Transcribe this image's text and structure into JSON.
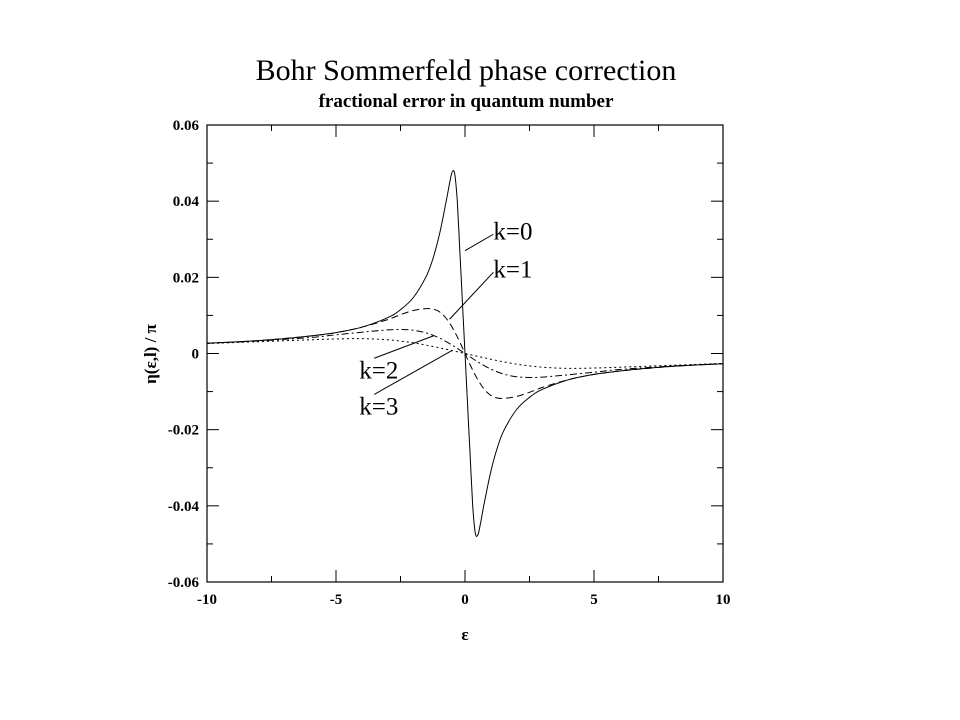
{
  "chart_data": {
    "type": "line",
    "title": "Bohr Sommerfeld phase correction",
    "subtitle": "fractional error in quantum number",
    "xlabel": "ε",
    "ylabel": "η(ε,l) / π",
    "xlim": [
      -10,
      10
    ],
    "ylim": [
      -0.06,
      0.06
    ],
    "x_ticks": [
      "-10",
      "-5",
      "0",
      "5",
      "10"
    ],
    "y_ticks": [
      "-0.06",
      "-0.04",
      "-0.02",
      "0",
      "0.02",
      "0.04",
      "0.06"
    ],
    "grid": false,
    "legend": "none",
    "series": [
      {
        "name": "k=0",
        "x": [
          -10,
          -9,
          -8,
          -7,
          -6,
          -5,
          -4,
          -3,
          -2.5,
          -2,
          -1.5,
          -1.25,
          -1,
          -0.75,
          -0.6,
          -0.5,
          -0.4,
          -0.3,
          -0.2,
          -0.1,
          0,
          0.1,
          0.2,
          0.3,
          0.4,
          0.5,
          0.6,
          0.75,
          1,
          1.25,
          1.5,
          2,
          2.5,
          3,
          4,
          5,
          6,
          7,
          8,
          9,
          10
        ],
        "y": [
          0.0027,
          0.003,
          0.0034,
          0.0039,
          0.0046,
          0.0055,
          0.0069,
          0.0094,
          0.0115,
          0.0147,
          0.0203,
          0.0248,
          0.031,
          0.0392,
          0.0446,
          0.0476,
          0.0472,
          0.04,
          0.027,
          0.0135,
          0,
          -0.0135,
          -0.027,
          -0.04,
          -0.0472,
          -0.0476,
          -0.0446,
          -0.0392,
          -0.031,
          -0.0248,
          -0.0203,
          -0.0147,
          -0.0115,
          -0.0094,
          -0.0069,
          -0.0055,
          -0.0046,
          -0.0039,
          -0.0034,
          -0.003,
          -0.0027
        ]
      },
      {
        "name": "k=1",
        "x": [
          -10,
          -8,
          -6,
          -5,
          -4,
          -3,
          -2.5,
          -2,
          -1.5,
          -1.2,
          -1,
          -0.8,
          -0.6,
          -0.4,
          -0.2,
          0,
          0.2,
          0.4,
          0.6,
          0.8,
          1,
          1.2,
          1.5,
          2,
          2.5,
          3,
          4,
          5,
          6,
          8,
          10
        ],
        "y": [
          0.0027,
          0.0034,
          0.0046,
          0.0055,
          0.0069,
          0.0089,
          0.0102,
          0.0113,
          0.0118,
          0.0116,
          0.011,
          0.0098,
          0.008,
          0.0057,
          0.003,
          0,
          -0.003,
          -0.0057,
          -0.008,
          -0.0098,
          -0.011,
          -0.0116,
          -0.0118,
          -0.0113,
          -0.0102,
          -0.0089,
          -0.0069,
          -0.0055,
          -0.0046,
          -0.0034,
          -0.0027
        ]
      },
      {
        "name": "k=2",
        "x": [
          -10,
          -8,
          -6,
          -5,
          -4,
          -3.5,
          -3,
          -2.5,
          -2,
          -1.5,
          -1,
          -0.5,
          0,
          0.5,
          1,
          1.5,
          2,
          2.5,
          3,
          3.5,
          4,
          5,
          6,
          8,
          10
        ],
        "y": [
          0.0027,
          0.0033,
          0.0042,
          0.0049,
          0.0056,
          0.0059,
          0.0062,
          0.0063,
          0.0061,
          0.0054,
          0.0041,
          0.0022,
          0,
          -0.0022,
          -0.0041,
          -0.0054,
          -0.0061,
          -0.0063,
          -0.0062,
          -0.0059,
          -0.0056,
          -0.0049,
          -0.0042,
          -0.0033,
          -0.0027
        ]
      },
      {
        "name": "k=3",
        "x": [
          -10,
          -8,
          -6,
          -5,
          -4,
          -3,
          -2,
          -1,
          0,
          1,
          2,
          3,
          4,
          5,
          6,
          8,
          10
        ],
        "y": [
          0.0026,
          0.0031,
          0.0036,
          0.0038,
          0.0039,
          0.0036,
          0.0028,
          0.0015,
          0,
          -0.0015,
          -0.0028,
          -0.0036,
          -0.0039,
          -0.0038,
          -0.0036,
          -0.0031,
          -0.0026
        ]
      }
    ],
    "annotations": [
      {
        "text": "k=0",
        "series": 0,
        "label_at": [
          1.1,
          0.03
        ],
        "points_to": [
          0.0,
          0.027
        ]
      },
      {
        "text": "k=1",
        "series": 1,
        "label_at": [
          1.1,
          0.02
        ],
        "points_to": [
          -0.6,
          0.009
        ]
      },
      {
        "text": "k=2",
        "series": 2,
        "label_at": [
          -4.1,
          -0.0065
        ],
        "points_to": [
          -1.2,
          0.0047
        ]
      },
      {
        "text": "k=3",
        "series": 3,
        "label_at": [
          -4.1,
          -0.016
        ],
        "points_to": [
          -0.5,
          0.0008
        ]
      }
    ]
  }
}
